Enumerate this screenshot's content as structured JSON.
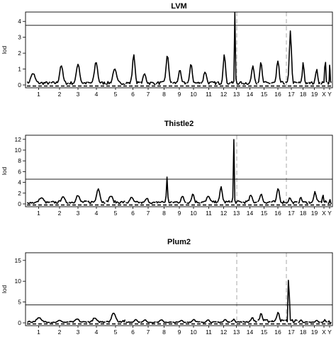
{
  "chart_data": [
    {
      "type": "line",
      "title": "LVM",
      "ylabel": "lod",
      "ylim": [
        0,
        4.5
      ],
      "yticks": [
        0,
        1,
        2,
        3,
        4
      ],
      "thresholds": [
        3.75
      ],
      "categories": [
        "1",
        "2",
        "3",
        "4",
        "5",
        "6",
        "7",
        "8",
        "9",
        "10",
        "11",
        "12",
        "13",
        "14",
        "15",
        "16",
        "17",
        "18",
        "19",
        "X",
        "Y"
      ],
      "peaks": [
        {
          "chr": "1",
          "value": 0.7
        },
        {
          "chr": "2",
          "value": 1.2
        },
        {
          "chr": "3",
          "value": 1.3
        },
        {
          "chr": "4",
          "value": 1.4
        },
        {
          "chr": "5",
          "value": 1.0
        },
        {
          "chr": "6",
          "value": 1.9
        },
        {
          "chr": "7",
          "value": 0.7
        },
        {
          "chr": "8",
          "value": 1.8
        },
        {
          "chr": "9",
          "value": 0.9
        },
        {
          "chr": "10",
          "value": 1.3
        },
        {
          "chr": "11",
          "value": 0.8
        },
        {
          "chr": "12",
          "value": 1.9
        },
        {
          "chr": "13",
          "value": 4.6
        },
        {
          "chr": "14",
          "value": 1.2
        },
        {
          "chr": "15",
          "value": 1.4
        },
        {
          "chr": "16",
          "value": 1.5
        },
        {
          "chr": "17",
          "value": 3.4
        },
        {
          "chr": "18",
          "value": 1.4
        },
        {
          "chr": "19",
          "value": 1.0
        },
        {
          "chr": "X",
          "value": 1.6
        },
        {
          "chr": "Y",
          "value": 1.3
        }
      ]
    },
    {
      "type": "line",
      "title": "Thistle2",
      "ylabel": "lod",
      "ylim": [
        0,
        12.5
      ],
      "yticks": [
        0,
        2,
        4,
        6,
        8,
        10,
        12
      ],
      "thresholds": [
        4.6
      ],
      "categories": [
        "1",
        "2",
        "3",
        "4",
        "5",
        "6",
        "7",
        "8",
        "9",
        "10",
        "11",
        "12",
        "13",
        "14",
        "15",
        "16",
        "17",
        "18",
        "19",
        "X",
        "Y"
      ],
      "peaks": [
        {
          "chr": "1",
          "value": 1.1
        },
        {
          "chr": "2",
          "value": 1.3
        },
        {
          "chr": "3",
          "value": 1.5
        },
        {
          "chr": "4",
          "value": 2.8
        },
        {
          "chr": "5",
          "value": 1.4
        },
        {
          "chr": "6",
          "value": 1.2
        },
        {
          "chr": "7",
          "value": 1.0
        },
        {
          "chr": "8",
          "value": 5.0
        },
        {
          "chr": "9",
          "value": 1.4
        },
        {
          "chr": "10",
          "value": 1.8
        },
        {
          "chr": "11",
          "value": 1.4
        },
        {
          "chr": "12",
          "value": 3.2
        },
        {
          "chr": "13",
          "value": 12.1
        },
        {
          "chr": "14",
          "value": 1.6
        },
        {
          "chr": "15",
          "value": 1.8
        },
        {
          "chr": "16",
          "value": 2.8
        },
        {
          "chr": "17",
          "value": 1.1
        },
        {
          "chr": "18",
          "value": 1.2
        },
        {
          "chr": "19",
          "value": 2.3
        },
        {
          "chr": "X",
          "value": 1.6
        },
        {
          "chr": "Y",
          "value": 0.8
        }
      ]
    },
    {
      "type": "line",
      "title": "Plum2",
      "ylabel": "lod",
      "ylim": [
        0,
        16.5
      ],
      "yticks": [
        0,
        5,
        10,
        15
      ],
      "thresholds": [
        4.3
      ],
      "categories": [
        "1",
        "2",
        "3",
        "4",
        "5",
        "6",
        "7",
        "8",
        "9",
        "10",
        "11",
        "12",
        "13",
        "14",
        "15",
        "16",
        "17",
        "18",
        "19",
        "X",
        "Y"
      ],
      "peaks": [
        {
          "chr": "1",
          "value": 1.2
        },
        {
          "chr": "2",
          "value": 0.6
        },
        {
          "chr": "3",
          "value": 0.9
        },
        {
          "chr": "4",
          "value": 1.1
        },
        {
          "chr": "5",
          "value": 2.3
        },
        {
          "chr": "6",
          "value": 0.8
        },
        {
          "chr": "7",
          "value": 0.7
        },
        {
          "chr": "8",
          "value": 0.7
        },
        {
          "chr": "9",
          "value": 0.6
        },
        {
          "chr": "10",
          "value": 0.8
        },
        {
          "chr": "11",
          "value": 0.7
        },
        {
          "chr": "12",
          "value": 0.8
        },
        {
          "chr": "13",
          "value": 0.9
        },
        {
          "chr": "14",
          "value": 1.2
        },
        {
          "chr": "15",
          "value": 2.2
        },
        {
          "chr": "16",
          "value": 2.5
        },
        {
          "chr": "17",
          "value": 16.0
        },
        {
          "chr": "18",
          "value": 0.7
        },
        {
          "chr": "19",
          "value": 0.6
        },
        {
          "chr": "X",
          "value": 0.8
        },
        {
          "chr": "Y",
          "value": 0.5
        }
      ]
    }
  ]
}
